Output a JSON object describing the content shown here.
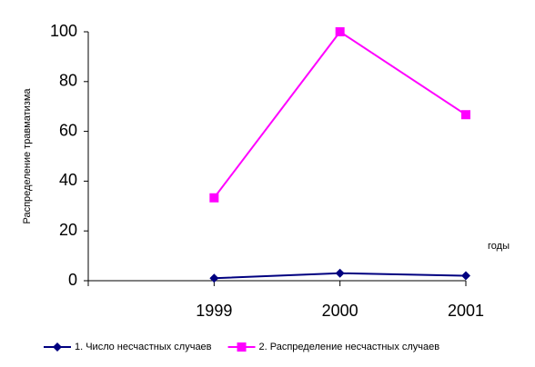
{
  "chart_data": {
    "type": "line",
    "y_label": "Распределение травматизма",
    "x_label": "годы",
    "categories": [
      null,
      "1999",
      "2000",
      "2001"
    ],
    "series": [
      {
        "name": "1. Числo несчастных случаев",
        "color": "#000080",
        "marker": "diamond",
        "values": [
          null,
          1,
          3,
          2
        ]
      },
      {
        "name": "2. Распределение несчастных случаев",
        "color": "#ff00ff",
        "marker": "square",
        "values": [
          null,
          33.3,
          100,
          66.7
        ]
      }
    ],
    "ylim": [
      0,
      100
    ],
    "yticks": [
      0,
      20,
      40,
      60,
      80,
      100
    ],
    "grid": false
  }
}
